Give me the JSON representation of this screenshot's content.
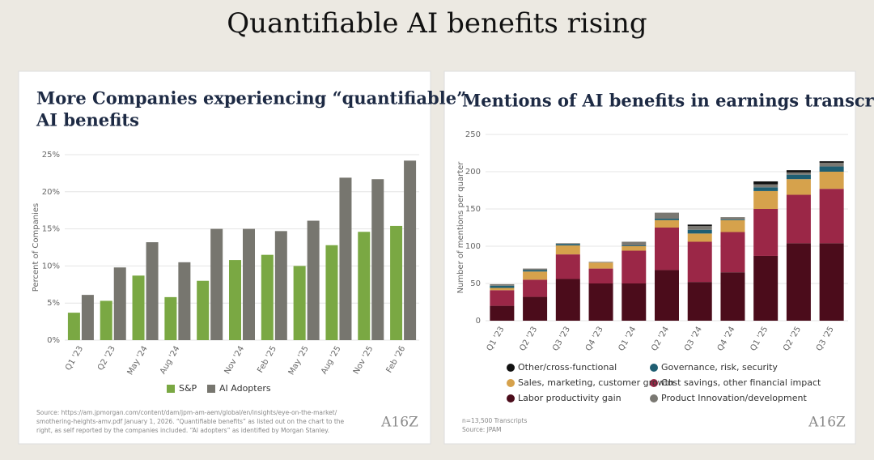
{
  "page_title": "Quantifiable AI benefits rising",
  "chart_data": [
    {
      "type": "bar",
      "title": [
        "More Companies experiencing “quantifiable”",
        "AI benefits"
      ],
      "ylabel": "Percent of Companies",
      "categories": [
        "Q1 '23",
        "Q2 '23",
        "May '24",
        "Aug '24",
        null,
        "Nov '24",
        "Feb '25",
        "May '25",
        "Aug '25",
        "Nov '25",
        "Feb '26"
      ],
      "series": [
        {
          "name": "S&P",
          "color": "#7aa843",
          "values": [
            3.7,
            5.3,
            8.7,
            5.8,
            8.0,
            10.8,
            11.5,
            10.0,
            12.8,
            14.6,
            15.4
          ]
        },
        {
          "name": "AI Adopters",
          "color": "#77766f",
          "values": [
            6.1,
            9.8,
            13.2,
            10.5,
            15.0,
            15.0,
            14.7,
            16.1,
            21.9,
            21.7,
            24.2
          ]
        }
      ],
      "ylim": [
        0,
        25
      ],
      "yticks": [
        {
          "value": 0,
          "label": "0%"
        },
        {
          "value": 5,
          "label": "5%"
        },
        {
          "value": 10,
          "label": "10%"
        },
        {
          "value": 15,
          "label": "15%"
        },
        {
          "value": 20,
          "label": "20%"
        },
        {
          "value": 25,
          "label": "25%"
        }
      ],
      "grid": true,
      "legend": "bottom",
      "source": [
        "Source: https://am.jpmorgan.com/content/dam/jpm-am-aem/global/en/insights/eye-on-the-market/",
        "smothering-heights-amv.pdf January 1, 2026. “Quantifiable benefits” as listed out on the chart to the",
        "right, as self reported by the companies included. “AI adopters” as identified by Morgan Stanley."
      ],
      "logo": "A16Z"
    },
    {
      "type": "stacked_bar",
      "title": [
        "Mentions of AI benefits in earnings transcripts"
      ],
      "ylabel": "Number of mentions per quarter",
      "categories": [
        "Q1 '23",
        "Q2 '23",
        "Q3 '23",
        "Q4 '23",
        "Q1 '24",
        "Q2 '24",
        "Q3 '24",
        "Q4 '24",
        "Q1 '25",
        "Q2 '25",
        "Q3 '25"
      ],
      "series": [
        {
          "name": "Labor productivity gain",
          "color": "#4b0c1b",
          "values": [
            20,
            32,
            56,
            50,
            50,
            68,
            52,
            65,
            87,
            104,
            104
          ]
        },
        {
          "name": "Cost savings, other financial impact",
          "color": "#9b2747",
          "values": [
            21,
            23,
            33,
            20,
            44,
            57,
            54,
            54,
            63,
            65,
            73
          ]
        },
        {
          "name": "Sales, marketing, customer growth",
          "color": "#d6a24c",
          "values": [
            3,
            11,
            12,
            8,
            6,
            10,
            11,
            16,
            24,
            21,
            23
          ]
        },
        {
          "name": "Governance, risk, security",
          "color": "#1f5e72",
          "values": [
            3,
            2,
            2,
            0,
            1,
            2,
            5,
            1,
            5,
            6,
            7
          ]
        },
        {
          "name": "Product Innovation/development",
          "color": "#7a7872",
          "values": [
            2,
            2,
            1,
            1,
            5,
            8,
            5,
            3,
            4,
            3,
            5
          ]
        },
        {
          "name": "Other/cross-functional",
          "color": "#111111",
          "values": [
            0,
            0,
            0,
            0,
            0,
            0,
            2,
            0,
            4,
            3,
            2
          ]
        }
      ],
      "ylim": [
        0,
        250
      ],
      "yticks": [
        0,
        50,
        100,
        150,
        200,
        250
      ],
      "grid": true,
      "legend": "bottom",
      "source": [
        "n=13,500 Transcripts",
        "Source: JPAM"
      ],
      "logo": "A16Z"
    }
  ]
}
